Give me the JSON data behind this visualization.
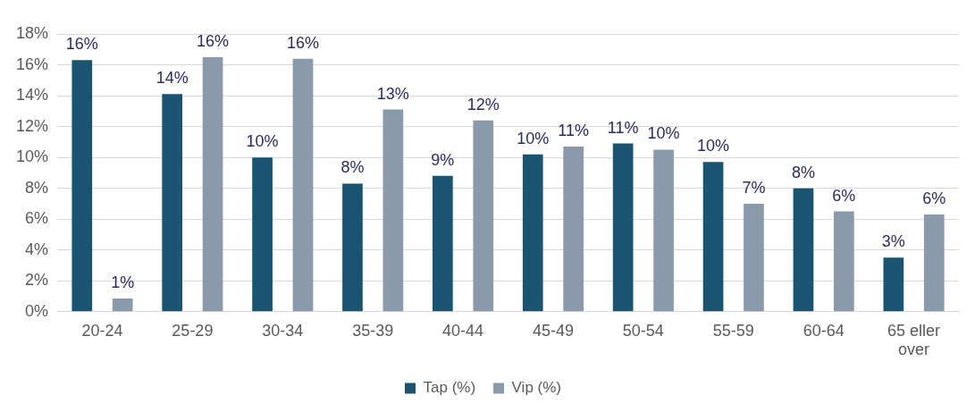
{
  "chart_data": {
    "type": "bar",
    "categories": [
      "20-24",
      "25-29",
      "30-34",
      "35-39",
      "40-44",
      "45-49",
      "50-54",
      "55-59",
      "60-64",
      "65 eller over"
    ],
    "series": [
      {
        "name": "Tap (%)",
        "color": "#1a5470",
        "values": [
          16.3,
          14.1,
          10.0,
          8.3,
          8.8,
          10.2,
          10.9,
          9.7,
          8.0,
          3.5
        ],
        "value_labels": [
          "16%",
          "14%",
          "10%",
          "8%",
          "9%",
          "10%",
          "11%",
          "10%",
          "8%",
          "3%"
        ]
      },
      {
        "name": "Vip (%)",
        "color": "#8a9aab",
        "values": [
          0.85,
          16.5,
          16.4,
          13.1,
          12.4,
          10.7,
          10.5,
          7.0,
          6.5,
          6.3
        ],
        "value_labels": [
          "1%",
          "16%",
          "16%",
          "13%",
          "12%",
          "11%",
          "10%",
          "7%",
          "6%",
          "6%"
        ]
      }
    ],
    "ylim": [
      0,
      18
    ],
    "yticks": [
      {
        "value": 0,
        "label": "0%"
      },
      {
        "value": 2,
        "label": "2%"
      },
      {
        "value": 4,
        "label": "4%"
      },
      {
        "value": 6,
        "label": "6%"
      },
      {
        "value": 8,
        "label": "8%"
      },
      {
        "value": 10,
        "label": "10%"
      },
      {
        "value": 12,
        "label": "12%"
      },
      {
        "value": 14,
        "label": "14%"
      },
      {
        "value": 16,
        "label": "16%"
      },
      {
        "value": 18,
        "label": "18%"
      }
    ],
    "grid": "y",
    "legend": "bottom"
  }
}
